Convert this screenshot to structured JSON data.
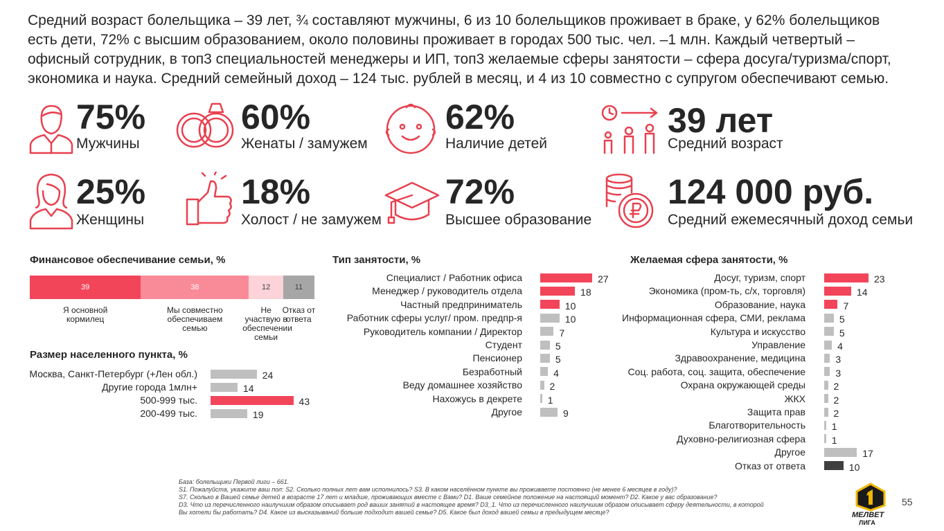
{
  "header": "Средний возраст болельщика – 39 лет, ¾ составляют мужчины, 6 из 10 болельщиков проживает в браке,  у 62% болельщиков есть дети, 72% с высшим образованием, около половины проживает в городах 500 тыс. чел. –1 млн. Каждый четвертый – офисный сотрудник, в топ3 специальностей менеджеры и ИП, топ3 желаемые сферы занятости – сфера досуга/туризма/спорт, экономика и наука. Средний семейный доход – 124 тыс. рублей в месяц, и 4 из 10 совместно с супругом обеспечивают семью.",
  "stats": [
    {
      "value": "75%",
      "label": "Мужчины"
    },
    {
      "value": "60%",
      "label": "Женаты / замужем"
    },
    {
      "value": "62%",
      "label": "Наличие детей"
    },
    {
      "value": "39 лет",
      "label": "Средний возраст"
    },
    {
      "value": "25%",
      "label": "Женщины"
    },
    {
      "value": "18%",
      "label": "Холост / не замужем"
    },
    {
      "value": "72%",
      "label": "Высшее образование"
    },
    {
      "value": "124 000 руб.",
      "label": "Средний ежемесячный доход семьи"
    }
  ],
  "chart_data": [
    {
      "type": "stacked_bar",
      "title": "Финансовое обеспечивание семьи, %",
      "xlim": [
        0,
        100
      ],
      "series": [
        {
          "name": "Я основной кормилец",
          "color": "#f2455a",
          "values": [
            39
          ]
        },
        {
          "name": "Мы совместно обеспечиваем семью",
          "color": "#f98b98",
          "values": [
            38
          ]
        },
        {
          "name": "Не участвую в обеспечении семьи",
          "color": "#fbd3d8",
          "values": [
            12
          ]
        },
        {
          "name": "Отказ от ответа",
          "color": "#a6a6a6",
          "values": [
            11
          ]
        }
      ]
    },
    {
      "type": "bar",
      "title": "Размер населенного пункта, %",
      "xlim": [
        0,
        100
      ],
      "categories": [
        "Москва, Санкт-Петербург (+Лен обл.)",
        "Другие города 1млн+",
        "500-999 тыс.",
        "200-499 тыс."
      ],
      "values": [
        24,
        14,
        43,
        19
      ],
      "colors": [
        "#bfbfbf",
        "#bfbfbf",
        "#f2455a",
        "#bfbfbf"
      ]
    },
    {
      "type": "bar",
      "title": "Тип занятости, %",
      "xlim": [
        0,
        100
      ],
      "categories": [
        "Специалист / Работник офиса",
        "Менеджер / руководитель отдела",
        "Частный предприниматель",
        "Работник сферы услуг/ пром. предпр-я",
        "Руководитель компании / Директор",
        "Студент",
        "Пенсионер",
        "Безработный",
        "Веду домашнее хозяйство",
        "Нахожусь в декрете",
        "Другое"
      ],
      "values": [
        27,
        18,
        10,
        10,
        7,
        5,
        5,
        4,
        2,
        1,
        9
      ],
      "colors": [
        "#f2455a",
        "#f2455a",
        "#f2455a",
        "#bfbfbf",
        "#bfbfbf",
        "#bfbfbf",
        "#bfbfbf",
        "#bfbfbf",
        "#bfbfbf",
        "#bfbfbf",
        "#bfbfbf"
      ]
    },
    {
      "type": "bar",
      "title": "Желаемая сфера занятости, %",
      "xlim": [
        0,
        100
      ],
      "categories": [
        "Досуг, туризм, спорт",
        "Экономика (пром-ть, с/х, торговля)",
        "Образование, наука",
        "Информационная сфера, СМИ, реклама",
        "Культура и искусство",
        "Управление",
        "Здравоохранение, медицина",
        "Соц. работа, соц. защита, обеспечение",
        "Охрана окружающей среды",
        "ЖКХ",
        "Защита прав",
        "Благотворительность",
        "Духовно-религиозная сфера",
        "Другое",
        "Отказ от ответа"
      ],
      "values": [
        23,
        14,
        7,
        5,
        5,
        4,
        3,
        3,
        2,
        2,
        2,
        1,
        1,
        17,
        10
      ],
      "colors": [
        "#f2455a",
        "#f2455a",
        "#f2455a",
        "#bfbfbf",
        "#bfbfbf",
        "#bfbfbf",
        "#bfbfbf",
        "#bfbfbf",
        "#bfbfbf",
        "#bfbfbf",
        "#bfbfbf",
        "#bfbfbf",
        "#bfbfbf",
        "#bfbfbf",
        "#404040"
      ]
    }
  ],
  "footnote": [
    "База: болельщики Первой лиги – 661.",
    "S1. Пожалуйста, укажите ваш пол: S2. Сколько полных лет вам исполнилось? S3. В каком населённом пункте вы проживаете постоянно (не менее 6 месяцев в году)?",
    "S7. Сколько в Вашей семье детей в возрасте 17 лет и  младше, проживающих вместе с Вами? D1. Ваше семейное положение на настоящий момент? D2. Какое у вас образование?",
    "D3. Что из перечисленного наилучшим образом описывает род ваших занятий в настоящее время? D3_1. Что из перечисленного наилучшим образом описывает сферу деятельности, в которой",
    "Вы хотели бы работать? D4. Какое из высказываний больше подходит вашей семье? D5. Какое был доход вашей семьи в предыдущем месяце?"
  ],
  "logo": {
    "brand": "МЕЛBET",
    "league": "ЛИГА"
  },
  "page_number": "55"
}
